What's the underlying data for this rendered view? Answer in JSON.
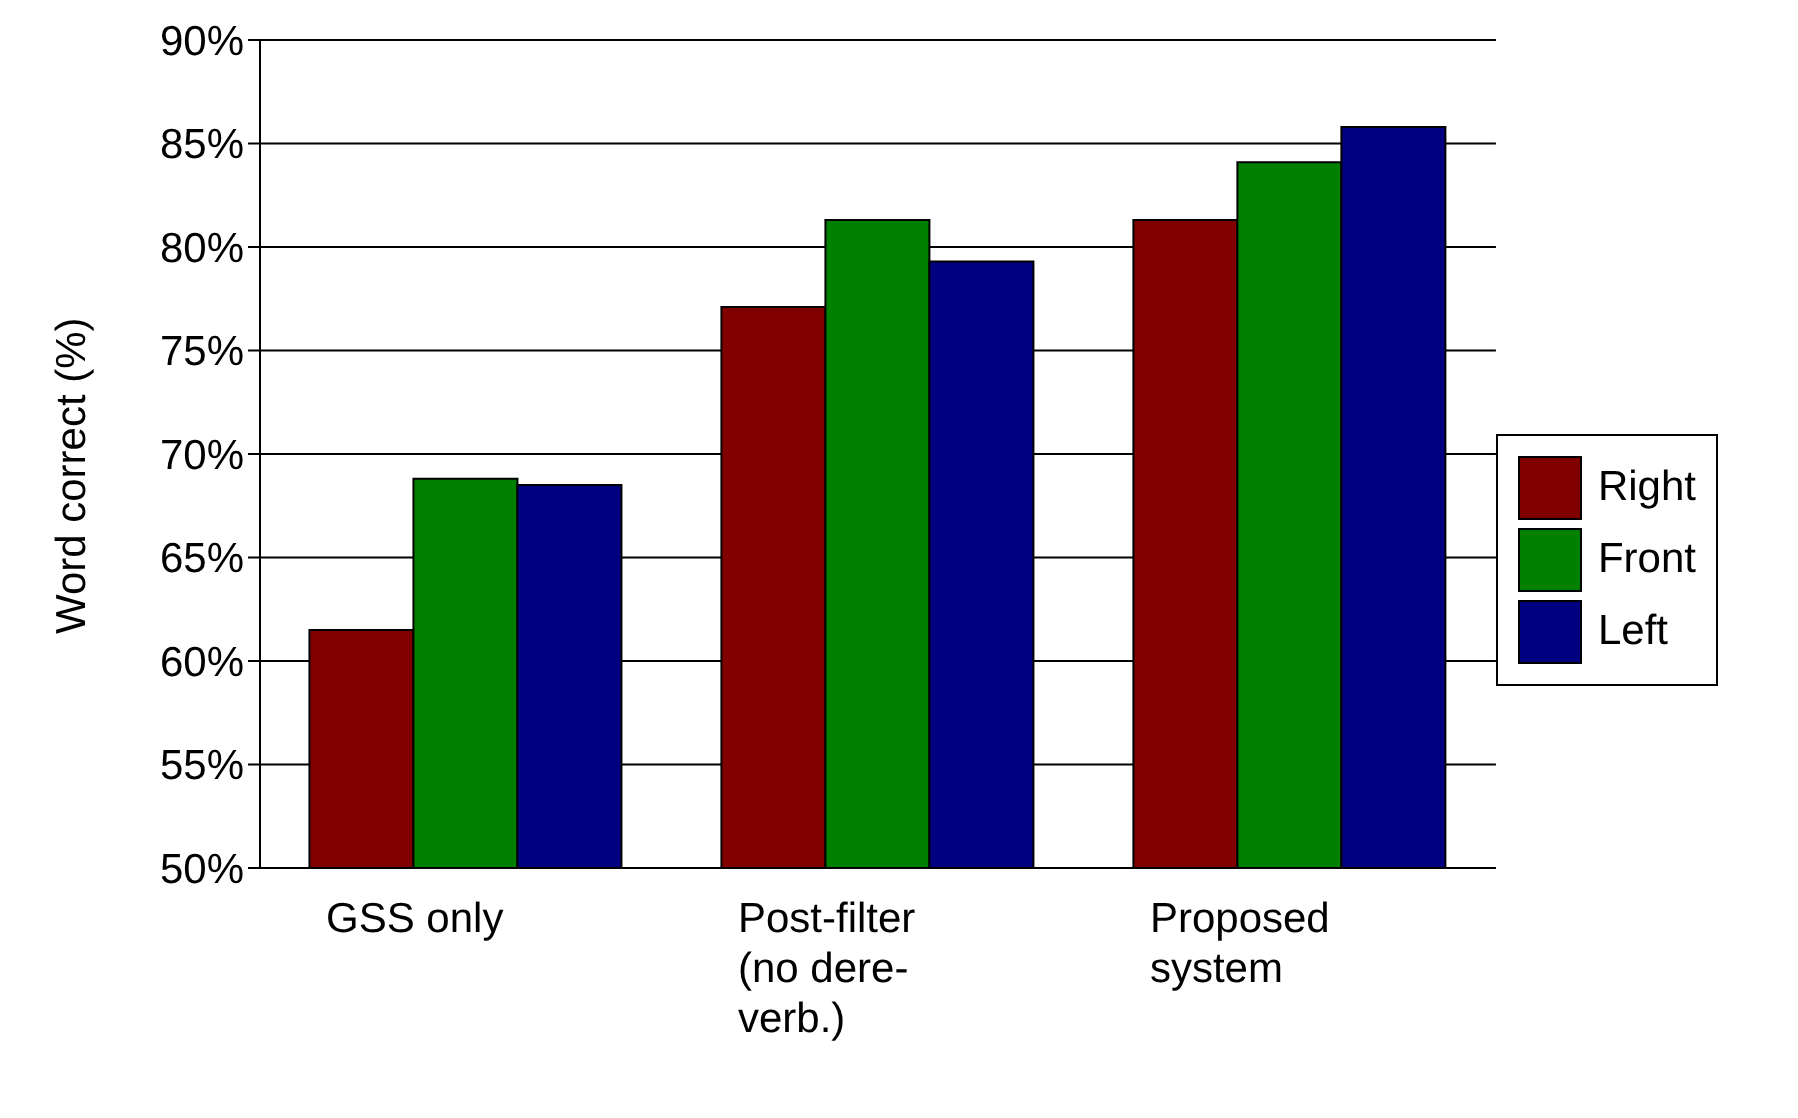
{
  "chart_data": {
    "type": "bar",
    "ylabel": "Word correct (%)",
    "categories": [
      "GSS only",
      "Post-filter (no dere-verb.)",
      "Proposed system"
    ],
    "series": [
      {
        "name": "Right",
        "color": "#800000",
        "values": [
          61.5,
          77.1,
          81.3
        ]
      },
      {
        "name": "Front",
        "color": "#008000",
        "values": [
          68.8,
          81.3,
          84.1
        ]
      },
      {
        "name": "Left",
        "color": "#000080",
        "values": [
          68.5,
          79.3,
          85.8
        ]
      }
    ],
    "ylim": [
      50,
      90
    ],
    "yticks": [
      {
        "value": 50,
        "label": "50%"
      },
      {
        "value": 55,
        "label": "55%"
      },
      {
        "value": 60,
        "label": "60%"
      },
      {
        "value": 65,
        "label": "65%"
      },
      {
        "value": 70,
        "label": "70%"
      },
      {
        "value": 75,
        "label": "75%"
      },
      {
        "value": 80,
        "label": "80%"
      },
      {
        "value": 85,
        "label": "85%"
      },
      {
        "value": 90,
        "label": "90%"
      }
    ],
    "grid": "y",
    "legend": "right"
  }
}
